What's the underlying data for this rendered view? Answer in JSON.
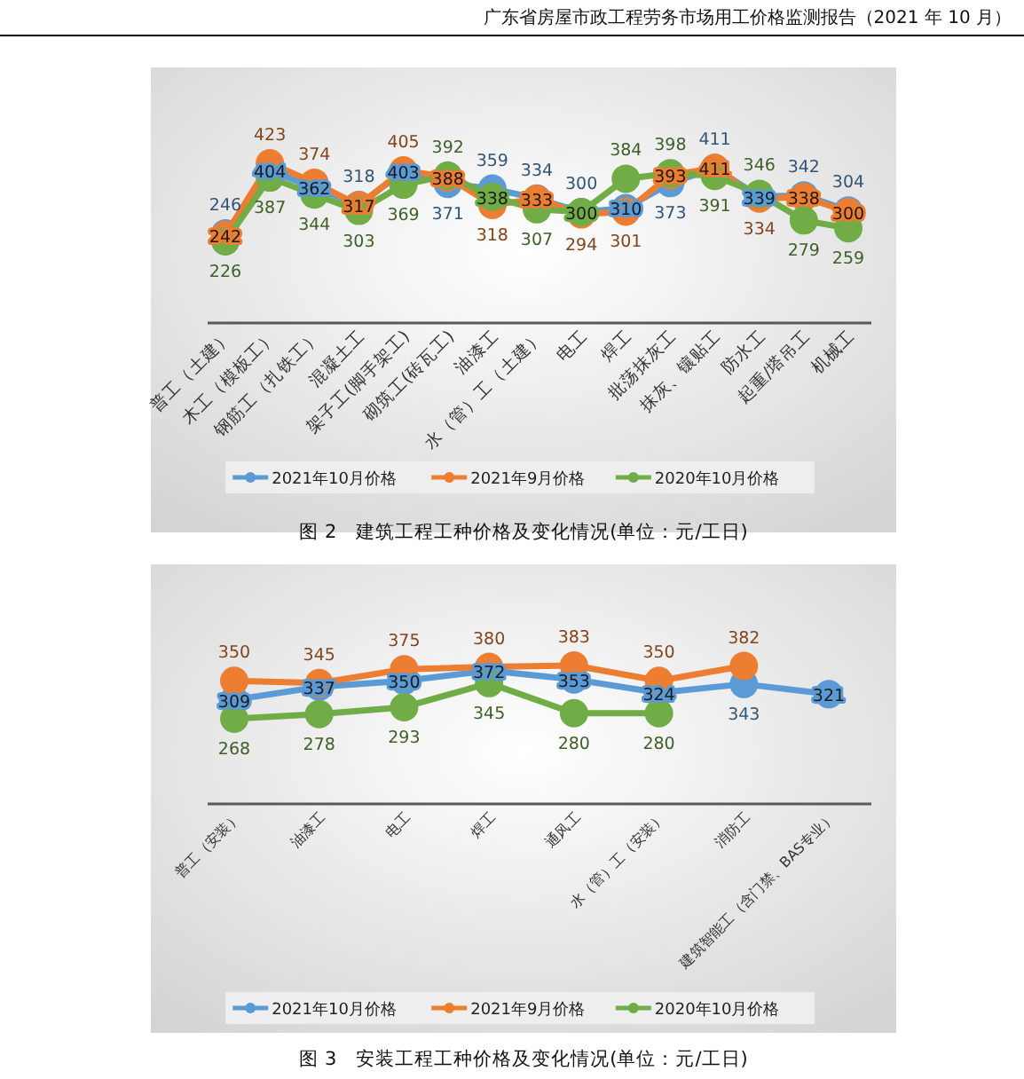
{
  "chart_data": [
    {
      "type": "line",
      "title": "图 2　建筑工程工种价格及变化情况(单位：元/工日)",
      "annotations": [
        "广东省房屋市政工程劳务市场用工价格监测报告（2021 年 10 月）"
      ],
      "categories": [
        "普工（土建）",
        "木工（模板工）",
        "钢筋工（扎铁工）",
        "混凝土工",
        "架子工(脚手架工)",
        "砌筑工(砖瓦工)",
        "油漆工",
        "水（管）工（土建）",
        "电工",
        "焊工",
        "批荡抹灰工",
        "抹灰、镶贴工",
        "防水工",
        "起重/塔吊工",
        "机械工"
      ],
      "series": [
        {
          "name": "2021年10月价格",
          "color": "#5b9bd5",
          "values": [
            246,
            404,
            362,
            318,
            403,
            371,
            359,
            334,
            300,
            310,
            373,
            411,
            339,
            342,
            304
          ]
        },
        {
          "name": "2021年9月价格",
          "color": "#ed7d31",
          "values": [
            242,
            423,
            374,
            317,
            405,
            388,
            318,
            333,
            294,
            301,
            393,
            411,
            334,
            338,
            300
          ]
        },
        {
          "name": "2020年10月价格",
          "color": "#70ad47",
          "values": [
            226,
            387,
            344,
            303,
            369,
            392,
            338,
            307,
            300,
            384,
            398,
            391,
            346,
            279,
            259
          ]
        }
      ],
      "data_labels": true,
      "legend": "bottom",
      "marker": "circle"
    },
    {
      "type": "line",
      "title": "图 3　安装工程工种价格及变化情况(单位：元/工日)",
      "categories": [
        "普工（安装）",
        "油漆工",
        "电工",
        "焊工",
        "通风工",
        "水（管）工（安装）",
        "消防工",
        "建筑智能工（含门禁、BAS专业）"
      ],
      "series": [
        {
          "name": "2021年10月价格",
          "color": "#5b9bd5",
          "values": [
            309,
            337,
            350,
            372,
            353,
            324,
            343,
            321
          ]
        },
        {
          "name": "2021年9月价格",
          "color": "#ed7d31",
          "values": [
            350,
            345,
            375,
            380,
            383,
            350,
            382,
            null
          ]
        },
        {
          "name": "2020年10月价格",
          "color": "#70ad47",
          "values": [
            268,
            278,
            293,
            345,
            280,
            280,
            null,
            null
          ]
        }
      ],
      "data_labels": true,
      "legend": "bottom",
      "marker": "circle"
    }
  ]
}
